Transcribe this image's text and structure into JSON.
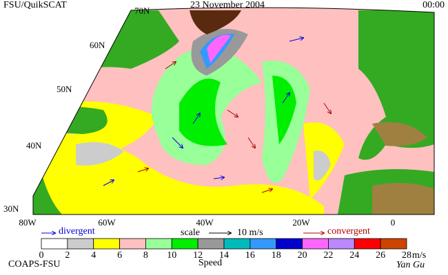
{
  "header": {
    "product": "FSU/QuikSCAT",
    "date": "23 November 2004",
    "time": "00:00"
  },
  "map": {
    "lat_labels": [
      "70N",
      "60N",
      "50N",
      "40N",
      "30N"
    ],
    "lon_labels": [
      "80W",
      "60W",
      "40W",
      "20W",
      "0"
    ]
  },
  "legend": {
    "divergent": "divergent",
    "scale": "scale",
    "scale_value": "10 m/s",
    "convergent": "convergent"
  },
  "colorbar": {
    "ticks": [
      0,
      2,
      4,
      6,
      8,
      10,
      12,
      14,
      16,
      18,
      20,
      22,
      24,
      26,
      28
    ],
    "unit": "m/s",
    "label": "Speed",
    "colors": [
      "#ffffff",
      "#cccccc",
      "#ffff00",
      "#ffc0c0",
      "#99ff99",
      "#00ee00",
      "#999999",
      "#00bbbb",
      "#3399ff",
      "#0000cc",
      "#ff66ff",
      "#bb88ff",
      "#ff0000",
      "#cc4400",
      "#000000"
    ]
  },
  "footer": {
    "institution": "COAPS-FSU",
    "signature": "Yan Gu"
  }
}
